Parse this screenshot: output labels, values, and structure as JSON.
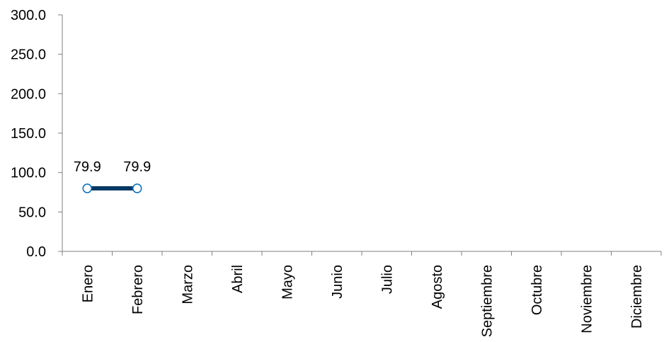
{
  "chart_data": {
    "type": "line",
    "categories": [
      "Enero",
      "Febrero",
      "Marzo",
      "Abril",
      "Mayo",
      "Junio",
      "Julio",
      "Agosto",
      "Septiembre",
      "Octubre",
      "Noviembre",
      "Diciembre"
    ],
    "series": [
      {
        "values": [
          79.9,
          79.9,
          null,
          null,
          null,
          null,
          null,
          null,
          null,
          null,
          null,
          null
        ],
        "color": "#003865"
      }
    ],
    "data_labels": [
      "79.9",
      "79.9"
    ],
    "yticks": [
      "0.0",
      "50.0",
      "100.0",
      "150.0",
      "200.0",
      "250.0",
      "300.0"
    ],
    "ylim": [
      0,
      300
    ],
    "grid": false,
    "legend": "none",
    "axis_color": "#808080",
    "marker_fill": "#ffffff",
    "marker_stroke": "#0070c0"
  }
}
